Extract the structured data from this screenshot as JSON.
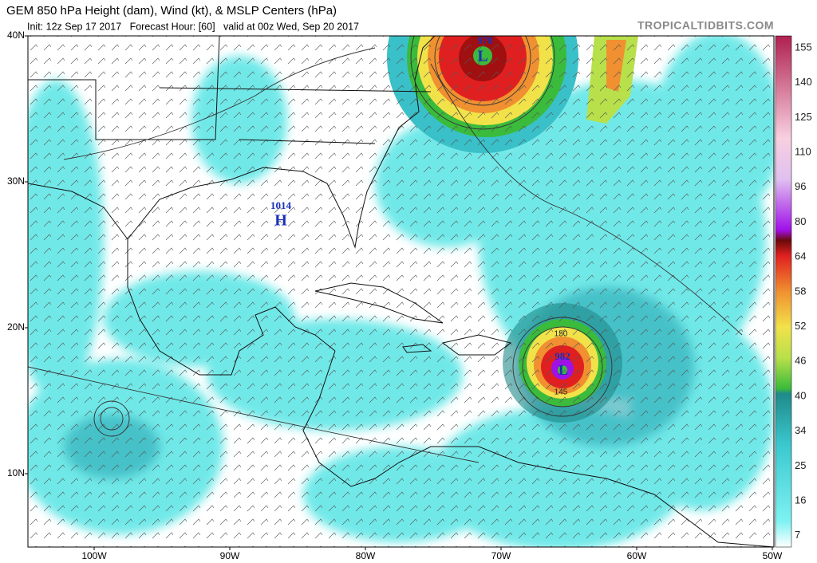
{
  "header": {
    "title": "GEM 850 hPa Height (dam), Wind (kt), & MSLP Centers (hPa)",
    "subtitle": "Init: 12z Sep 17 2017   Forecast Hour: [60]   valid at 00z Wed, Sep 20 2017",
    "site": "TROPICALTIDBITS.COM"
  },
  "map": {
    "lat_labels": [
      "40N",
      "30N",
      "20N",
      "10N"
    ],
    "lon_labels": [
      "100W",
      "90W",
      "80W",
      "70W",
      "60W",
      "50W"
    ],
    "centers": [
      {
        "pressure": "1014",
        "symbol": "H"
      },
      {
        "pressure": "978",
        "symbol": "L"
      },
      {
        "pressure": "982",
        "symbol": "L"
      }
    ],
    "contour_labels": [
      "150",
      "145"
    ]
  },
  "colorbar": {
    "labels": [
      "155",
      "140",
      "125",
      "110",
      "96",
      "80",
      "64",
      "58",
      "52",
      "46",
      "40",
      "34",
      "25",
      "16",
      "7"
    ]
  }
}
